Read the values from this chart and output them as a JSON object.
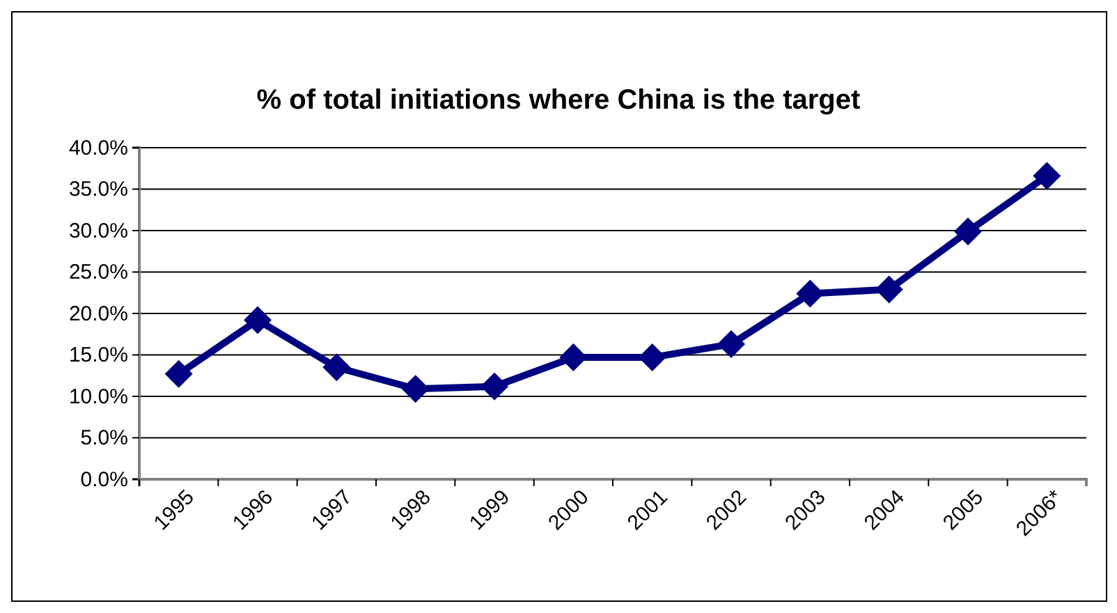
{
  "chart_data": {
    "type": "line",
    "title": "% of total initiations where China is the target",
    "categories": [
      "1995",
      "1996",
      "1997",
      "1998",
      "1999",
      "2000",
      "2001",
      "2002",
      "2003",
      "2004",
      "2005",
      "2006*"
    ],
    "series": [
      {
        "color": "#000080",
        "values": [
          12.7,
          19.2,
          13.5,
          10.9,
          11.2,
          14.7,
          14.7,
          16.3,
          22.4,
          22.9,
          29.9,
          36.6
        ]
      }
    ],
    "ylim": [
      0,
      40
    ],
    "yticks": [
      {
        "value": 0,
        "label": "0.0%"
      },
      {
        "value": 5,
        "label": "5.0%"
      },
      {
        "value": 10,
        "label": "10.0%"
      },
      {
        "value": 15,
        "label": "15.0%"
      },
      {
        "value": 20,
        "label": "20.0%"
      },
      {
        "value": 25,
        "label": "25.0%"
      },
      {
        "value": 30,
        "label": "30.0%"
      },
      {
        "value": 35,
        "label": "35.0%"
      },
      {
        "value": 40,
        "label": "40.0%"
      }
    ],
    "grid": "y",
    "marker": "diamond",
    "line_style": "solid"
  }
}
